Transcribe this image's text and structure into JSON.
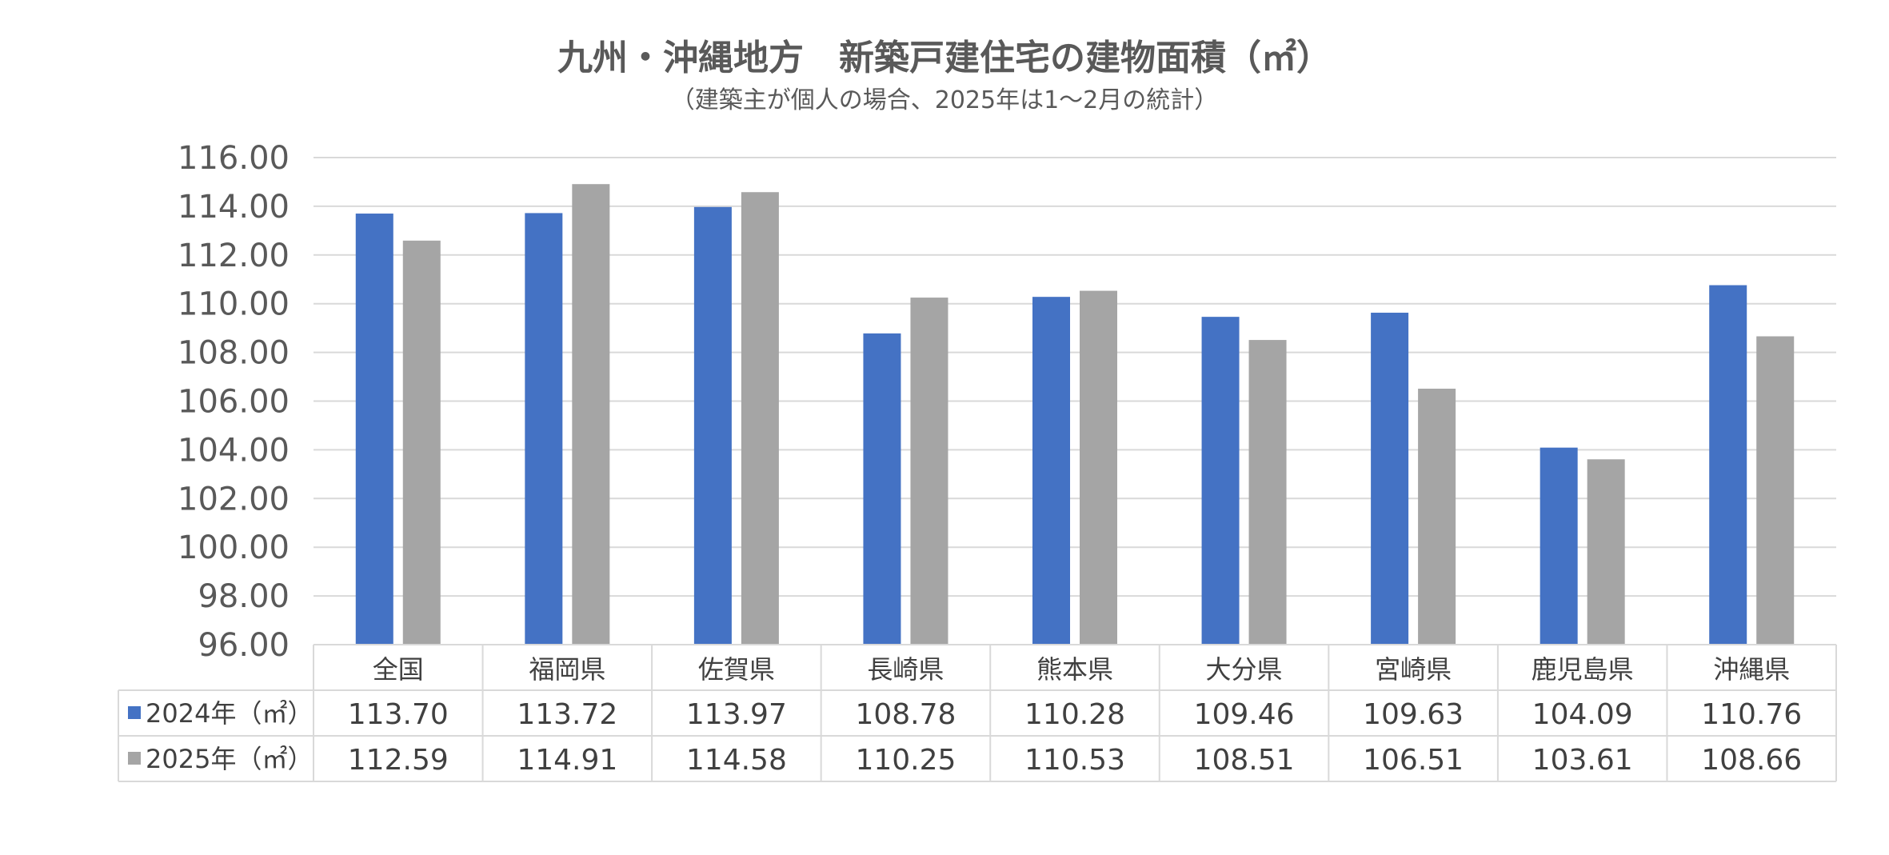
{
  "chart_data": {
    "type": "bar",
    "title": "九州・沖縄地方　新築戸建住宅の建物面積（㎡）",
    "subtitle": "（建築主が個人の場合、2025年は1～2月の統計）",
    "categories": [
      "全国",
      "福岡県",
      "佐賀県",
      "長崎県",
      "熊本県",
      "大分県",
      "宮崎県",
      "鹿児島県",
      "沖縄県"
    ],
    "series": [
      {
        "name": "2024年（㎡）",
        "color": "#4472C4",
        "values": [
          113.7,
          113.72,
          113.97,
          108.78,
          110.28,
          109.46,
          109.63,
          104.09,
          110.76
        ]
      },
      {
        "name": "2025年（㎡）",
        "color": "#A5A5A5",
        "values": [
          112.59,
          114.91,
          114.58,
          110.25,
          110.53,
          108.51,
          106.51,
          103.61,
          108.66
        ]
      }
    ],
    "ylim": [
      96,
      116
    ],
    "yticks": [
      "96.00",
      "98.00",
      "100.00",
      "102.00",
      "104.00",
      "106.00",
      "108.00",
      "110.00",
      "112.00",
      "114.00",
      "116.00"
    ],
    "grid": true,
    "legend": "data-table",
    "data_table": true
  }
}
